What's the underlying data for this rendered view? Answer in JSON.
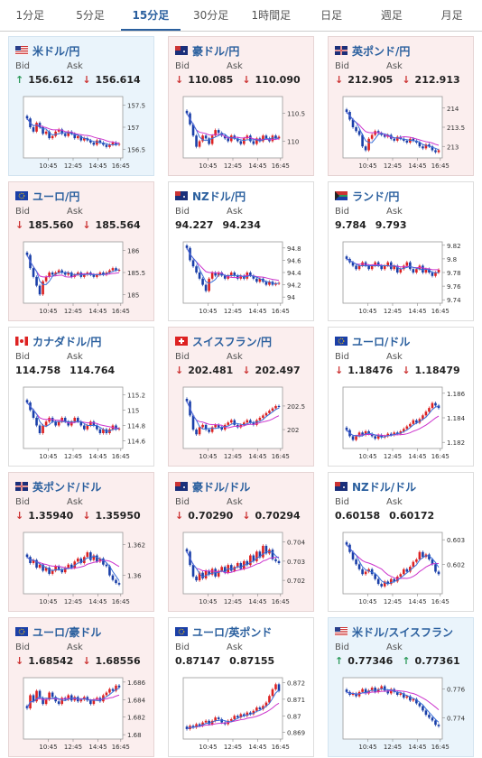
{
  "tabs": [
    {
      "label": "1分足",
      "active": false
    },
    {
      "label": "5分足",
      "active": false
    },
    {
      "label": "15分足",
      "active": true
    },
    {
      "label": "30分足",
      "active": false
    },
    {
      "label": "1時間足",
      "active": false
    },
    {
      "label": "日足",
      "active": false
    },
    {
      "label": "週足",
      "active": false
    },
    {
      "label": "月足",
      "active": false
    }
  ],
  "bid_label": "Bid",
  "ask_label": "Ask",
  "time_labels": [
    "10:45",
    "12:45",
    "14:45",
    "16:45"
  ],
  "colors": {
    "up": "#d22",
    "down": "#1a3fa8",
    "ma_short": "#3a6fd8",
    "ma_long": "#cc33cc",
    "arrow_up": "#2d9a5b",
    "arrow_down": "#c33"
  },
  "pairs": [
    {
      "name": "米ドル/円",
      "flag": "us-flag",
      "bid": "156.612",
      "ask": "156.614",
      "bid_dir": "up",
      "ask_dir": "down",
      "bg": "blue",
      "yticks": [
        "157.5",
        "157",
        "156.5"
      ],
      "ylim": [
        156.3,
        157.7
      ],
      "closes": [
        157.2,
        157.0,
        156.9,
        157.1,
        157.0,
        156.85,
        156.9,
        156.75,
        156.8,
        156.9,
        156.95,
        156.85,
        156.8,
        156.9,
        156.85,
        156.75,
        156.8,
        156.7,
        156.75,
        156.7,
        156.65,
        156.6,
        156.7,
        156.65,
        156.6,
        156.55,
        156.6,
        156.65,
        156.6,
        156.62
      ]
    },
    {
      "name": "豪ドル/円",
      "flag": "au-flag",
      "bid": "110.085",
      "ask": "110.090",
      "bid_dir": "down",
      "ask_dir": "down",
      "bg": "red",
      "yticks": [
        "110.5",
        "110"
      ],
      "ylim": [
        109.7,
        110.8
      ],
      "closes": [
        110.5,
        110.3,
        110.1,
        109.9,
        110.0,
        110.1,
        110.05,
        109.95,
        110.1,
        110.2,
        110.15,
        110.1,
        110.05,
        110.0,
        110.1,
        110.05,
        110.0,
        109.95,
        110.05,
        110.1,
        110.0,
        109.95,
        110.05,
        110.0,
        110.1,
        110.05,
        110.0,
        110.1,
        110.05,
        110.08
      ]
    },
    {
      "name": "英ポンド/円",
      "flag": "uk-flag",
      "bid": "212.905",
      "ask": "212.913",
      "bid_dir": "down",
      "ask_dir": "down",
      "bg": "red",
      "yticks": [
        "214",
        "213.5",
        "213"
      ],
      "ylim": [
        212.7,
        214.3
      ],
      "closes": [
        213.9,
        213.7,
        213.5,
        213.4,
        213.3,
        213.0,
        212.9,
        213.2,
        213.3,
        213.4,
        213.35,
        213.3,
        213.25,
        213.3,
        213.2,
        213.15,
        213.25,
        213.2,
        213.15,
        213.1,
        213.2,
        213.15,
        213.1,
        213.0,
        212.95,
        213.05,
        213.0,
        212.9,
        212.85,
        212.9
      ]
    },
    {
      "name": "ユーロ/円",
      "flag": "eu-flag",
      "bid": "185.560",
      "ask": "185.564",
      "bid_dir": "down",
      "ask_dir": "down",
      "bg": "red",
      "yticks": [
        "186",
        "185.5",
        "185"
      ],
      "ylim": [
        184.8,
        186.2
      ],
      "closes": [
        185.9,
        185.6,
        185.4,
        185.2,
        185.0,
        185.3,
        185.4,
        185.5,
        185.45,
        185.5,
        185.55,
        185.5,
        185.45,
        185.5,
        185.4,
        185.45,
        185.5,
        185.4,
        185.45,
        185.5,
        185.45,
        185.4,
        185.45,
        185.5,
        185.45,
        185.5,
        185.55,
        185.6,
        185.55,
        185.56
      ]
    },
    {
      "name": "NZドル/円",
      "flag": "nz-flag",
      "bid": "94.227",
      "ask": "94.234",
      "bid_dir": "none",
      "ask_dir": "none",
      "bg": "white",
      "yticks": [
        "94.8",
        "94.6",
        "94.4",
        "94.2",
        "94"
      ],
      "ylim": [
        93.9,
        94.9
      ],
      "closes": [
        94.8,
        94.6,
        94.5,
        94.4,
        94.3,
        94.2,
        94.1,
        94.3,
        94.4,
        94.35,
        94.4,
        94.35,
        94.3,
        94.35,
        94.4,
        94.35,
        94.3,
        94.35,
        94.3,
        94.4,
        94.35,
        94.3,
        94.25,
        94.3,
        94.25,
        94.2,
        94.25,
        94.2,
        94.22,
        94.23
      ]
    },
    {
      "name": "ランド/円",
      "flag": "za-flag",
      "bid": "9.784",
      "ask": "9.793",
      "bid_dir": "none",
      "ask_dir": "none",
      "bg": "white",
      "yticks": [
        "9.82",
        "9.8",
        "9.78",
        "9.76",
        "9.74"
      ],
      "ylim": [
        9.735,
        9.825
      ],
      "closes": [
        9.8,
        9.795,
        9.79,
        9.785,
        9.79,
        9.795,
        9.79,
        9.785,
        9.79,
        9.795,
        9.79,
        9.785,
        9.79,
        9.795,
        9.785,
        9.79,
        9.78,
        9.785,
        9.79,
        9.795,
        9.785,
        9.78,
        9.785,
        9.79,
        9.78,
        9.785,
        9.78,
        9.775,
        9.78,
        9.784
      ]
    },
    {
      "name": "カナダドル/円",
      "flag": "ca-flag",
      "bid": "114.758",
      "ask": "114.764",
      "bid_dir": "none",
      "ask_dir": "none",
      "bg": "white",
      "yticks": [
        "115.2",
        "115",
        "114.8",
        "114.6"
      ],
      "ylim": [
        114.5,
        115.3
      ],
      "closes": [
        115.1,
        115.0,
        114.9,
        114.8,
        114.7,
        114.8,
        114.85,
        114.9,
        114.85,
        114.8,
        114.85,
        114.9,
        114.85,
        114.8,
        114.85,
        114.9,
        114.85,
        114.8,
        114.75,
        114.8,
        114.85,
        114.8,
        114.75,
        114.7,
        114.75,
        114.7,
        114.75,
        114.8,
        114.75,
        114.76
      ]
    },
    {
      "name": "スイスフラン/円",
      "flag": "ch-flag",
      "bid": "202.481",
      "ask": "202.497",
      "bid_dir": "down",
      "ask_dir": "down",
      "bg": "red",
      "yticks": [
        "202.5",
        "202"
      ],
      "ylim": [
        201.6,
        202.9
      ],
      "closes": [
        202.6,
        202.3,
        202.0,
        201.9,
        202.05,
        202.1,
        202.0,
        201.95,
        202.05,
        202.1,
        202.05,
        202.0,
        202.1,
        202.15,
        202.2,
        202.1,
        202.05,
        202.1,
        202.15,
        202.2,
        202.15,
        202.1,
        202.2,
        202.25,
        202.3,
        202.35,
        202.4,
        202.45,
        202.5,
        202.48
      ]
    },
    {
      "name": "ユーロ/ドル",
      "flag": "eu-flag",
      "bid": "1.18476",
      "ask": "1.18479",
      "bid_dir": "down",
      "ask_dir": "down",
      "bg": "white",
      "yticks": [
        "1.186",
        "1.184",
        "1.182"
      ],
      "ylim": [
        1.1815,
        1.1865
      ],
      "closes": [
        1.183,
        1.1825,
        1.1822,
        1.1825,
        1.1828,
        1.1826,
        1.1829,
        1.1827,
        1.1825,
        1.1823,
        1.1826,
        1.1824,
        1.1825,
        1.1827,
        1.1826,
        1.1828,
        1.1827,
        1.1829,
        1.1831,
        1.1833,
        1.1835,
        1.1838,
        1.1836,
        1.1839,
        1.1842,
        1.1845,
        1.1848,
        1.1852,
        1.185,
        1.1848
      ]
    },
    {
      "name": "英ポンド/ドル",
      "flag": "uk-flag",
      "bid": "1.35940",
      "ask": "1.35950",
      "bid_dir": "down",
      "ask_dir": "down",
      "bg": "red",
      "yticks": [
        "1.362",
        "1.36"
      ],
      "ylim": [
        1.3588,
        1.3628
      ],
      "closes": [
        1.3612,
        1.3608,
        1.361,
        1.3605,
        1.3607,
        1.3603,
        1.3605,
        1.3601,
        1.3603,
        1.3606,
        1.3604,
        1.3602,
        1.3605,
        1.3607,
        1.3605,
        1.3609,
        1.3611,
        1.3608,
        1.3612,
        1.3615,
        1.361,
        1.3613,
        1.3609,
        1.3611,
        1.3607,
        1.3606,
        1.36,
        1.3597,
        1.3595,
        1.3594
      ]
    },
    {
      "name": "豪ドル/ドル",
      "flag": "au-flag",
      "bid": "0.70290",
      "ask": "0.70294",
      "bid_dir": "down",
      "ask_dir": "down",
      "bg": "red",
      "yticks": [
        "0.704",
        "0.703",
        "0.702"
      ],
      "ylim": [
        0.7013,
        0.7045
      ],
      "closes": [
        0.7035,
        0.7028,
        0.7022,
        0.702,
        0.7024,
        0.7021,
        0.7025,
        0.7023,
        0.7026,
        0.7022,
        0.7025,
        0.7027,
        0.7024,
        0.7028,
        0.7025,
        0.7027,
        0.7029,
        0.7026,
        0.703,
        0.7028,
        0.7033,
        0.703,
        0.7035,
        0.7032,
        0.7038,
        0.7034,
        0.7036,
        0.7031,
        0.703,
        0.7029
      ]
    },
    {
      "name": "NZドル/ドル",
      "flag": "nz-flag",
      "bid": "0.60158",
      "ask": "0.60172",
      "bid_dir": "none",
      "ask_dir": "none",
      "bg": "white",
      "yticks": [
        "0.603",
        "0.602"
      ],
      "ylim": [
        0.6008,
        0.6033
      ],
      "closes": [
        0.6028,
        0.6025,
        0.6022,
        0.602,
        0.6018,
        0.6016,
        0.6017,
        0.6018,
        0.6016,
        0.6014,
        0.6012,
        0.6011,
        0.6013,
        0.6012,
        0.6014,
        0.6013,
        0.6015,
        0.6016,
        0.6018,
        0.6017,
        0.6019,
        0.6021,
        0.6022,
        0.6025,
        0.6023,
        0.6024,
        0.6022,
        0.602,
        0.6017,
        0.6016
      ]
    },
    {
      "name": "ユーロ/豪ドル",
      "flag": "eu-au-flag",
      "bid": "1.68542",
      "ask": "1.68556",
      "bid_dir": "down",
      "ask_dir": "down",
      "bg": "red",
      "yticks": [
        "1.686",
        "1.684",
        "1.682",
        "1.68"
      ],
      "ylim": [
        1.6795,
        1.6865
      ],
      "closes": [
        1.683,
        1.6845,
        1.6838,
        1.685,
        1.6842,
        1.6835,
        1.684,
        1.6848,
        1.6843,
        1.6838,
        1.6835,
        1.6842,
        1.684,
        1.6845,
        1.6839,
        1.6843,
        1.6838,
        1.684,
        1.6843,
        1.6839,
        1.6835,
        1.684,
        1.6842,
        1.6838,
        1.6845,
        1.6848,
        1.6852,
        1.685,
        1.6856,
        1.6854
      ]
    },
    {
      "name": "ユーロ/英ポンド",
      "flag": "eu-uk-flag",
      "bid": "0.87147",
      "ask": "0.87155",
      "bid_dir": "none",
      "ask_dir": "none",
      "bg": "white",
      "yticks": [
        "0.872",
        "0.871",
        "0.87",
        "0.869"
      ],
      "ylim": [
        0.8686,
        0.8723
      ],
      "closes": [
        0.8692,
        0.8694,
        0.8693,
        0.8695,
        0.8694,
        0.8696,
        0.8697,
        0.8695,
        0.8697,
        0.8699,
        0.8698,
        0.8696,
        0.8695,
        0.8697,
        0.8698,
        0.87,
        0.8699,
        0.8701,
        0.87,
        0.8702,
        0.8701,
        0.8703,
        0.8705,
        0.8704,
        0.8706,
        0.8708,
        0.8712,
        0.8716,
        0.8719,
        0.8715
      ]
    },
    {
      "name": "米ドル/スイスフラン",
      "flag": "us-ch-flag",
      "bid": "0.77346",
      "ask": "0.77361",
      "bid_dir": "up",
      "ask_dir": "up",
      "bg": "blue",
      "yticks": [
        "0.776",
        "0.774"
      ],
      "ylim": [
        0.7725,
        0.7768
      ],
      "closes": [
        0.7758,
        0.7756,
        0.7757,
        0.7755,
        0.7758,
        0.776,
        0.7757,
        0.7759,
        0.7761,
        0.7758,
        0.776,
        0.7762,
        0.7759,
        0.7757,
        0.776,
        0.7758,
        0.7756,
        0.7757,
        0.7754,
        0.7755,
        0.7752,
        0.7753,
        0.775,
        0.7748,
        0.7745,
        0.7742,
        0.774,
        0.7738,
        0.7735,
        0.7734
      ]
    }
  ]
}
